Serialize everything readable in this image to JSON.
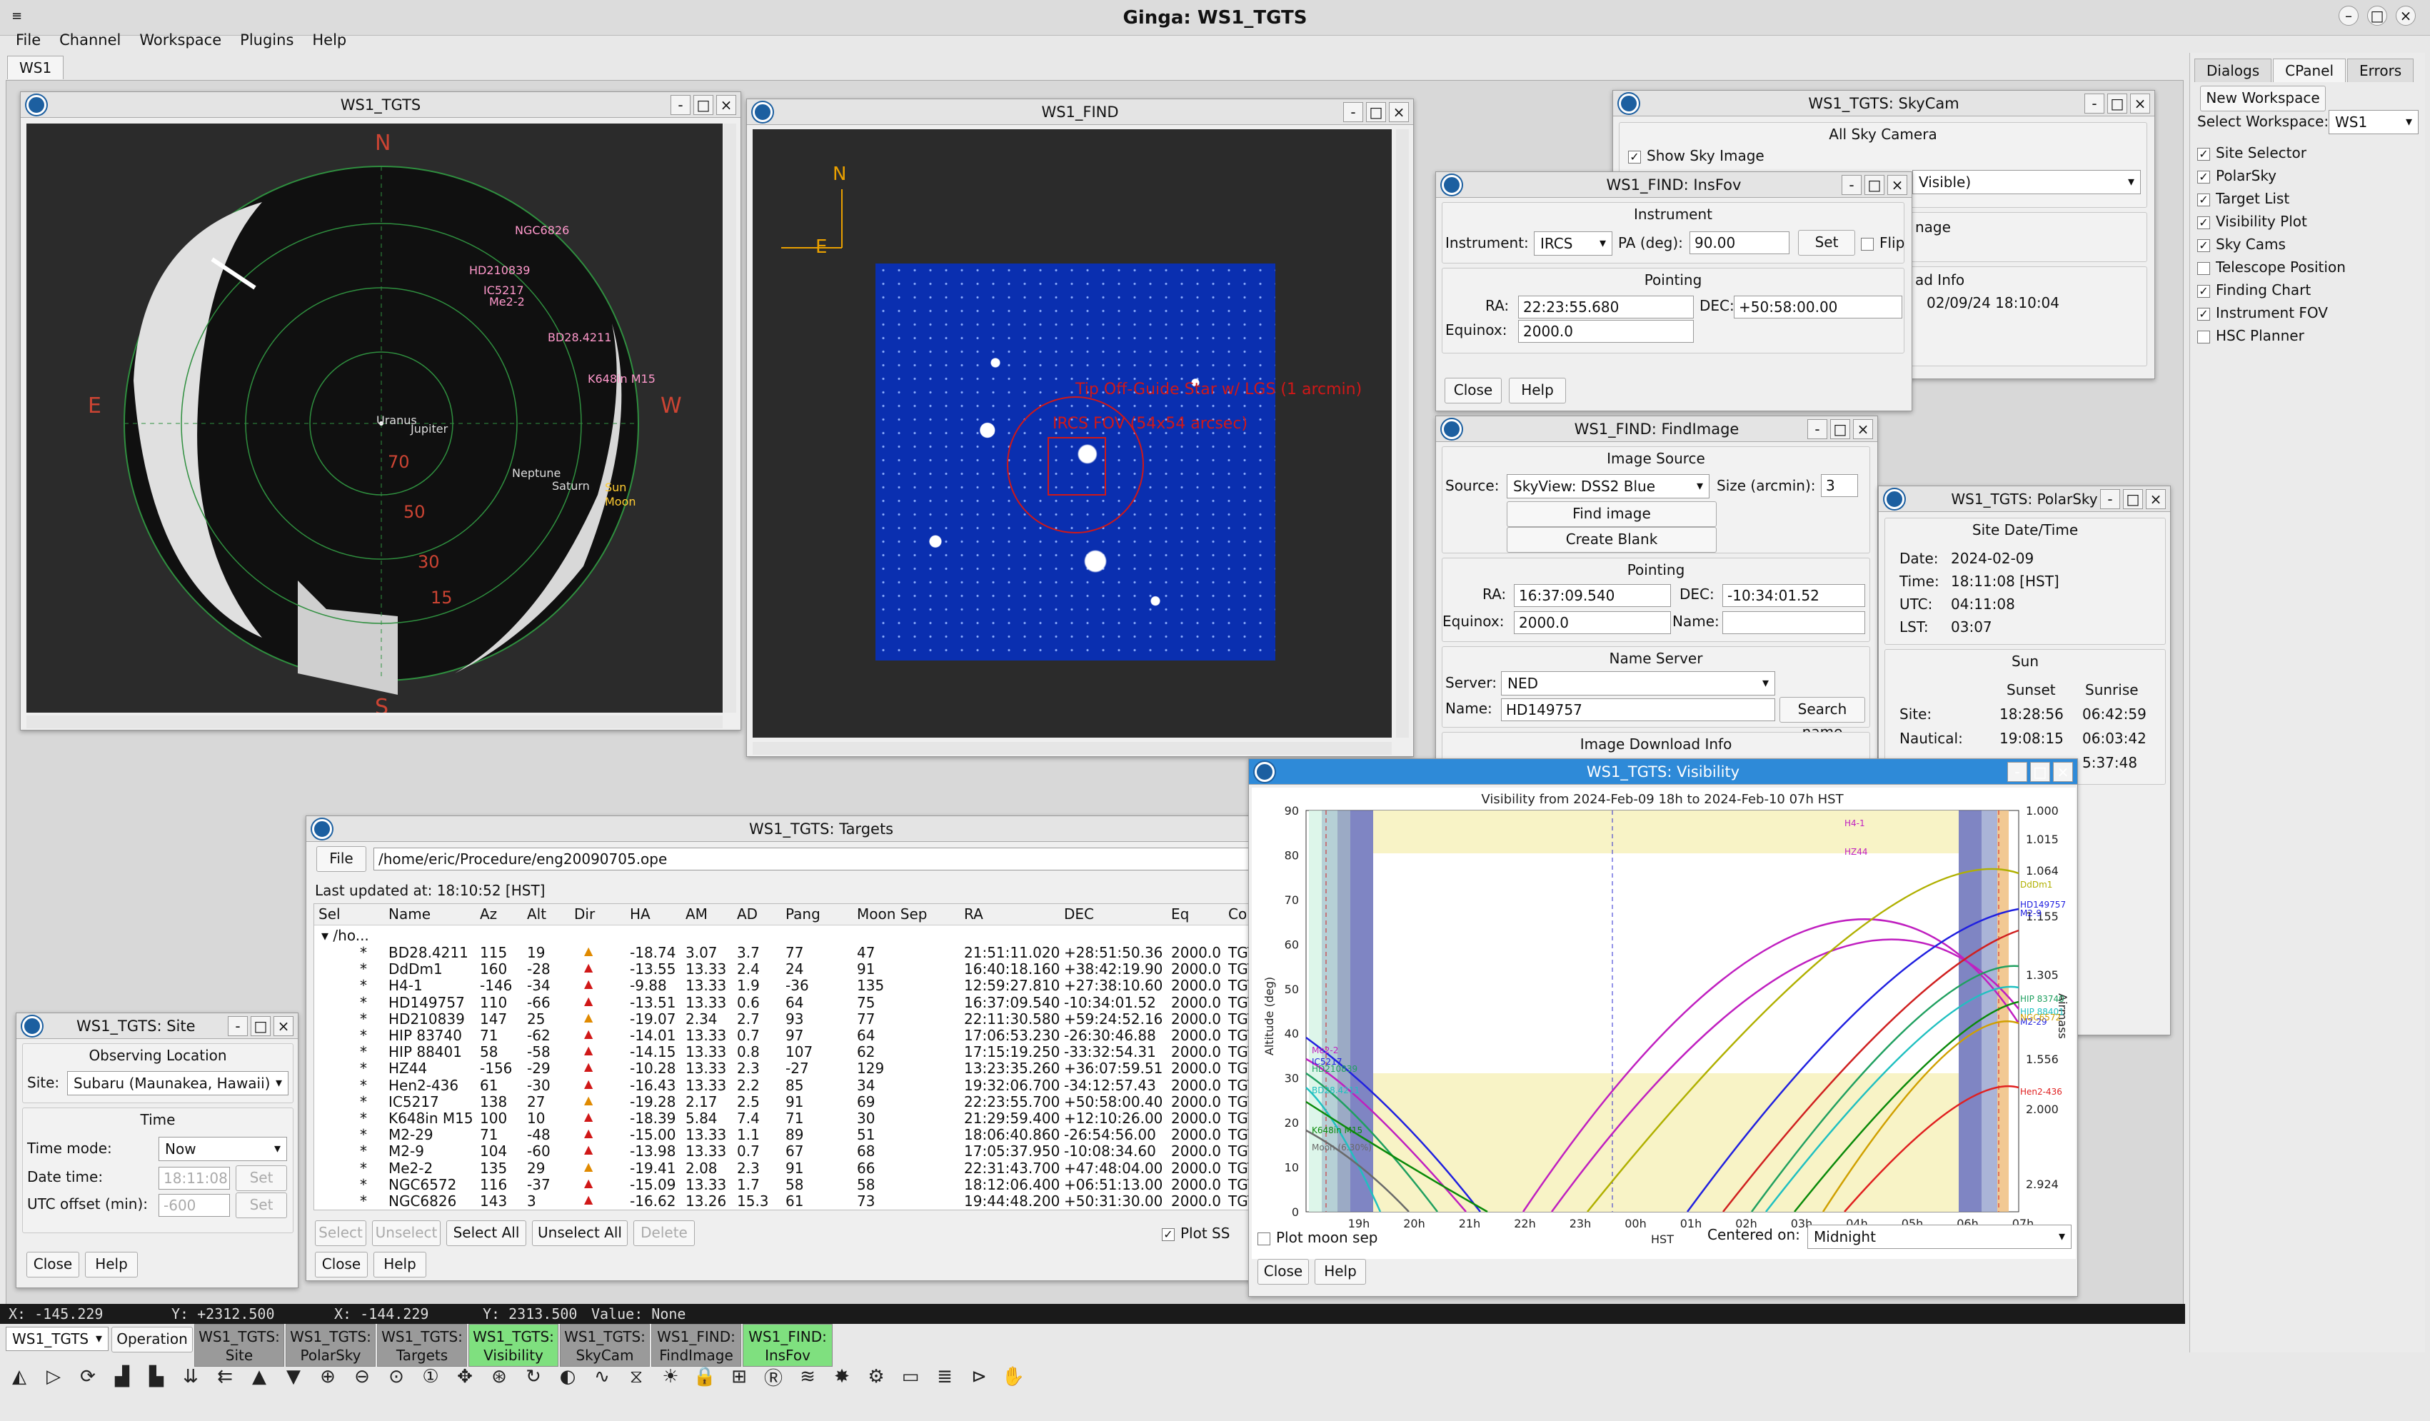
{
  "app_title": "Ginga: WS1_TGTS",
  "menu": [
    "File",
    "Channel",
    "Workspace",
    "Plugins",
    "Help"
  ],
  "ws_tab": "WS1",
  "tgts_win": {
    "title": "WS1_TGTS",
    "dirs": {
      "n": "N",
      "s": "S",
      "e": "E",
      "w": "W"
    },
    "alt_labels": [
      "70",
      "50",
      "30",
      "15"
    ],
    "objects": [
      "NGC6826",
      "HD210839",
      "IC5217",
      "Me2-2",
      "BD28.4211",
      "K648in M15",
      "Uranus",
      "Jupiter",
      "Neptune",
      "Saturn",
      "Sun",
      "Moon"
    ]
  },
  "find_win": {
    "title": "WS1_FIND",
    "n": "N",
    "e": "E",
    "overlay1": "Tip Off-Guide Star w/ LGS (1 arcmin)",
    "overlay2": "IRCS FOV (54x54 arcsec)"
  },
  "skycam": {
    "title": "WS1_TGTS: SkyCam",
    "header": "All Sky Camera",
    "show": "Show Sky Image",
    "sel_frag": "Visible)",
    "frag_image": "nage",
    "frag_info": "ad Info",
    "frag_date": "02/09/24 18:10:04"
  },
  "insfov": {
    "title": "WS1_FIND: InsFov",
    "instrument_hdr": "Instrument",
    "instrument_lbl": "Instrument:",
    "instrument": "IRCS",
    "pa_lbl": "PA (deg):",
    "pa": "90.00",
    "set": "Set",
    "flip": "Flip",
    "pointing_hdr": "Pointing",
    "ra_lbl": "RA:",
    "ra": "22:23:55.680",
    "dec_lbl": "DEC:",
    "dec": "+50:58:00.00",
    "eq_lbl": "Equinox:",
    "eq": "2000.0",
    "close": "Close",
    "help": "Help"
  },
  "findimage": {
    "title": "WS1_FIND: FindImage",
    "src_hdr": "Image Source",
    "src_lbl": "Source:",
    "src": "SkyView: DSS2 Blue",
    "size_lbl": "Size (arcmin):",
    "size": "3",
    "find": "Find image",
    "blank": "Create Blank",
    "pt_hdr": "Pointing",
    "ra_lbl": "RA:",
    "ra": "16:37:09.540",
    "dec_lbl": "DEC:",
    "dec": "-10:34:01.52",
    "eq_lbl": "Equinox:",
    "eq": "2000.0",
    "name_lbl": "Name:",
    "ns_hdr": "Name Server",
    "server_lbl": "Server:",
    "server": "NED",
    "name2_lbl": "Name:",
    "name": "HD149757",
    "search": "Search name",
    "dl": "Image Download Info"
  },
  "polarsky": {
    "title": "WS1_TGTS: PolarSky",
    "sdt_hdr": "Site Date/Time",
    "rows": [
      [
        "Date:",
        "2024-02-09"
      ],
      [
        "Time:",
        "18:11:08 [HST]"
      ],
      [
        "UTC:",
        "04:11:08"
      ],
      [
        "LST:",
        "03:07"
      ]
    ],
    "sun_hdr": "Sun",
    "sunset": "Sunset",
    "sunrise": "Sunrise",
    "sun_rows": [
      [
        "Site:",
        "18:28:56",
        "06:42:59"
      ],
      [
        "Nautical:",
        "19:08:15",
        "06:03:42"
      ],
      [
        "",
        "",
        "5:37:48"
      ]
    ]
  },
  "vis": {
    "title": "WS1_TGTS: Visibility",
    "plot_title": "Visibility from 2024-Feb-09 18h to 2024-Feb-10 07h HST",
    "ylabel": "Altitude (deg)",
    "y2label": "Airmass",
    "xlabel": "HST",
    "date": "2024-Feb-10",
    "yticks": [
      "90",
      "80",
      "70",
      "60",
      "50",
      "40",
      "30",
      "20",
      "10",
      "0"
    ],
    "y2ticks": [
      "1.000",
      "1.015",
      "1.064",
      "1.155",
      "1.305",
      "1.556",
      "2.000",
      "2.924"
    ],
    "xticks": [
      "19h",
      "20h",
      "21h",
      "22h",
      "23h",
      "00h",
      "01h",
      "02h",
      "03h",
      "04h",
      "05h",
      "06h",
      "07h"
    ],
    "labels": [
      "H4-1",
      "HZ44",
      "DdDm1",
      "HD149757",
      "M2-9",
      "HIP 83740",
      "HIP 88401",
      "M2-29",
      "NGC6572",
      "Hen2-436",
      "Me2-2",
      "IC5217",
      "HD210839",
      "BD28.4211",
      "K648in M15",
      "Moon (6.30%)"
    ],
    "plot_moon": "Plot moon sep",
    "centered_lbl": "Centered on:",
    "centered": "Midnight",
    "close": "Close",
    "help": "Help"
  },
  "targets": {
    "title": "WS1_TGTS: Targets",
    "file_btn": "File",
    "path": "/home/eric/Procedure/eng20090705.ope",
    "updated": "Last updated at: 18:10:52 [HST]",
    "cols": [
      "Sel",
      "Name",
      "Az",
      "Alt",
      "Dir",
      "HA",
      "AM",
      "AD",
      "Pang",
      "Moon Sep",
      "RA",
      "DEC",
      "Eq",
      "Com"
    ],
    "group": "/ho...",
    "rows": [
      [
        "*",
        "BD28.4211",
        "115",
        "19",
        "-18.74",
        "3.07",
        "3.7",
        "77",
        "47",
        "21:51:11.020",
        "+28:51:50.36",
        "2000.0",
        "TGT"
      ],
      [
        "*",
        "DdDm1",
        "160",
        "-28",
        "-13.55",
        "13.33",
        "2.4",
        "24",
        "91",
        "16:40:18.160",
        "+38:42:19.90",
        "2000.0",
        "TGT"
      ],
      [
        "*",
        "H4-1",
        "-146",
        "-34",
        "-9.88",
        "13.33",
        "1.9",
        "-36",
        "135",
        "12:59:27.810",
        "+27:38:10.60",
        "2000.0",
        "TGT"
      ],
      [
        "*",
        "HD149757",
        "110",
        "-66",
        "-13.51",
        "13.33",
        "0.6",
        "64",
        "75",
        "16:37:09.540",
        "-10:34:01.52",
        "2000.0",
        "TGT"
      ],
      [
        "*",
        "HD210839",
        "147",
        "25",
        "-19.07",
        "2.34",
        "2.7",
        "93",
        "77",
        "22:11:30.580",
        "+59:24:52.16",
        "2000.0",
        "TGT"
      ],
      [
        "*",
        "HIP 83740",
        "71",
        "-62",
        "-14.01",
        "13.33",
        "0.7",
        "97",
        "64",
        "17:06:53.230",
        "-26:30:46.88",
        "2000.0",
        "TGT"
      ],
      [
        "*",
        "HIP 88401",
        "58",
        "-58",
        "-14.15",
        "13.33",
        "0.8",
        "107",
        "62",
        "17:15:19.250",
        "-33:32:54.31",
        "2000.0",
        "TGT"
      ],
      [
        "*",
        "HZ44",
        "-156",
        "-29",
        "-10.28",
        "13.33",
        "2.3",
        "-27",
        "129",
        "13:23:35.260",
        "+36:07:59.51",
        "2000.0",
        "TGT"
      ],
      [
        "*",
        "Hen2-436",
        "61",
        "-30",
        "-16.43",
        "13.33",
        "2.2",
        "85",
        "34",
        "19:32:06.700",
        "-34:12:57.43",
        "2000.0",
        "TGT"
      ],
      [
        "*",
        "IC5217",
        "138",
        "27",
        "-19.28",
        "2.17",
        "2.5",
        "91",
        "69",
        "22:23:55.700",
        "+50:58:00.40",
        "2000.0",
        "TGT"
      ],
      [
        "*",
        "K648in M15",
        "100",
        "10",
        "-18.39",
        "5.84",
        "7.4",
        "71",
        "30",
        "21:29:59.400",
        "+12:10:26.00",
        "2000.0",
        "TGT"
      ],
      [
        "*",
        "M2-29",
        "71",
        "-48",
        "-15.00",
        "13.33",
        "1.1",
        "89",
        "51",
        "18:06:40.860",
        "-26:54:56.00",
        "2000.0",
        "TGT"
      ],
      [
        "*",
        "M2-9",
        "104",
        "-60",
        "-13.98",
        "13.33",
        "0.7",
        "67",
        "68",
        "17:05:37.950",
        "-10:08:34.60",
        "2000.0",
        "TGT"
      ],
      [
        "*",
        "Me2-2",
        "135",
        "29",
        "-19.41",
        "2.08",
        "2.3",
        "91",
        "66",
        "22:31:43.700",
        "+47:48:04.00",
        "2000.0",
        "TGT"
      ],
      [
        "*",
        "NGC6572",
        "116",
        "-37",
        "-15.09",
        "13.33",
        "1.7",
        "58",
        "58",
        "18:12:06.400",
        "+06:51:13.00",
        "2000.0",
        "TGT"
      ],
      [
        "*",
        "NGC6826",
        "143",
        "3",
        "-16.62",
        "13.26",
        "15.3",
        "61",
        "73",
        "19:44:48.200",
        "+50:31:30.00",
        "2000.0",
        "TGT"
      ]
    ],
    "btns": [
      "Select",
      "Unselect",
      "Select All",
      "Unselect All",
      "Delete"
    ],
    "plot_ss": "Plot SS",
    "close": "Close",
    "help": "Help"
  },
  "site": {
    "title": "WS1_TGTS: Site",
    "loc_hdr": "Observing Location",
    "site_lbl": "Site:",
    "site": "Subaru (Maunakea, Hawaii)",
    "time_hdr": "Time",
    "mode_lbl": "Time mode:",
    "mode": "Now",
    "date_lbl": "Date time:",
    "date": "18:11:08",
    "set": "Set",
    "utc_lbl": "UTC offset (min):",
    "utc": "-600",
    "close": "Close",
    "help": "Help"
  },
  "cpanel": {
    "tabs": [
      "Dialogs",
      "CPanel",
      "Errors"
    ],
    "new_ws": "New Workspace",
    "select_lbl": "Select Workspace:",
    "ws": "WS1",
    "items": [
      [
        "Site Selector",
        true
      ],
      [
        "PolarSky",
        true
      ],
      [
        "Target List",
        true
      ],
      [
        "Visibility Plot",
        true
      ],
      [
        "Sky Cams",
        true
      ],
      [
        "Telescope Position",
        false
      ],
      [
        "Finding Chart",
        true
      ],
      [
        "Instrument FOV",
        true
      ],
      [
        "HSC Planner",
        false
      ]
    ]
  },
  "status": {
    "x1": "X: -145.229",
    "y1": "Y: +2312.500",
    "x2": "X: -144.229",
    "y2": "Y: 2313.500",
    "value": "Value: None"
  },
  "bottom": {
    "ws": "WS1_TGTS",
    "op": "Operation",
    "tabs": [
      [
        "WS1_TGTS:",
        "Site",
        "g"
      ],
      [
        "WS1_TGTS:",
        "PolarSky",
        "g"
      ],
      [
        "WS1_TGTS:",
        "Targets",
        "g"
      ],
      [
        "WS1_TGTS:",
        "Visibility",
        "l"
      ],
      [
        "WS1_TGTS:",
        "SkyCam",
        "g"
      ],
      [
        "WS1_FIND:",
        "FindImage",
        "g"
      ],
      [
        "WS1_FIND:",
        "InsFov",
        "l"
      ]
    ]
  },
  "toolbar_icons": [
    "flip-x-icon",
    "flip-y-icon",
    "rotate-icon",
    "orient-lh-icon",
    "orient-rh-icon",
    "pan-down-icon",
    "pan-left-icon",
    "arrow-up-icon",
    "arrow-down-icon",
    "zoom-in-icon",
    "zoom-out-icon",
    "zoom-fit-icon",
    "zoom-1-icon",
    "pan-icon",
    "center-icon",
    "rotate-free-icon",
    "contrast-icon",
    "cmap-icon",
    "autocut-icon",
    "brightness-icon",
    "lock-icon",
    "crop-icon",
    "radial-icon",
    "cuts-icon",
    "star-icon",
    "settings-icon",
    "folder-icon",
    "layers-icon",
    "tag-icon",
    "hand-icon"
  ]
}
